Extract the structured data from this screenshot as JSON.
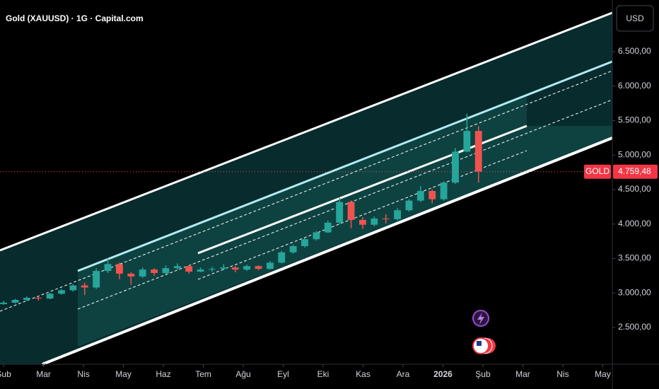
{
  "chart_data": {
    "type": "candlestick",
    "title": "Gold (XAUUSD) · 1G · Capital.com",
    "currency_button": "USD",
    "symbol_tag": "GOLD",
    "last_price": {
      "value": 4759.48,
      "label": "4.759,48"
    },
    "up_color": "#26a69a",
    "down_color": "#ef5350",
    "x": [
      0,
      0.29,
      0.58,
      0.87,
      1.16,
      1.45,
      1.74,
      2.03,
      2.32,
      2.61,
      2.9,
      3.19,
      3.48,
      3.77,
      4.06,
      4.35,
      4.64,
      4.93,
      5.22,
      5.51,
      5.8,
      6.09,
      6.38,
      6.67,
      6.96,
      7.25,
      7.54,
      7.83,
      8.12,
      8.41,
      8.7,
      8.99,
      9.28,
      9.57,
      9.86,
      10.15,
      10.44,
      10.73,
      11.02,
      11.31,
      11.6,
      11.89
    ],
    "open": [
      2840,
      2860,
      2900,
      2930,
      2920,
      2990,
      3040,
      3110,
      3080,
      3320,
      3420,
      3280,
      3240,
      3340,
      3290,
      3360,
      3390,
      3310,
      3340,
      3350,
      3370,
      3340,
      3390,
      3350,
      3440,
      3590,
      3680,
      3780,
      3880,
      4020,
      4320,
      4060,
      3990,
      4080,
      4070,
      4200,
      4340,
      4480,
      4360,
      4600,
      5050,
      5350
    ],
    "high": [
      2885,
      2915,
      2950,
      2955,
      3005,
      3060,
      3130,
      3150,
      3360,
      3500,
      3440,
      3300,
      3370,
      3360,
      3400,
      3430,
      3400,
      3370,
      3380,
      3420,
      3390,
      3410,
      3400,
      3460,
      3610,
      3700,
      3800,
      3900,
      4050,
      4380,
      4340,
      4100,
      4110,
      4140,
      4230,
      4360,
      4550,
      4500,
      4620,
      5100,
      5600,
      5420
    ],
    "low": [
      2830,
      2850,
      2885,
      2890,
      2910,
      2975,
      3020,
      2970,
      3060,
      3290,
      3200,
      3120,
      3220,
      3250,
      3270,
      3340,
      3280,
      3300,
      3310,
      3330,
      3300,
      3320,
      3330,
      3340,
      3430,
      3570,
      3660,
      3760,
      3870,
      4000,
      3940,
      3930,
      3970,
      4010,
      4050,
      4180,
      4320,
      4300,
      4340,
      4580,
      5040,
      4600
    ],
    "close": [
      2860,
      2900,
      2930,
      2920,
      2990,
      3040,
      3110,
      3080,
      3320,
      3420,
      3280,
      3240,
      3340,
      3290,
      3360,
      3390,
      3310,
      3340,
      3350,
      3370,
      3340,
      3390,
      3350,
      3440,
      3590,
      3680,
      3780,
      3880,
      4020,
      4320,
      4060,
      3990,
      4080,
      4070,
      4200,
      4340,
      4480,
      4360,
      4600,
      5050,
      5350,
      4759.48
    ],
    "xlim": [
      -0.09,
      15.24
    ],
    "xticks": [
      {
        "value": 0,
        "label": "Şub"
      },
      {
        "value": 1,
        "label": "Mar"
      },
      {
        "value": 2,
        "label": "Nis"
      },
      {
        "value": 3,
        "label": "May"
      },
      {
        "value": 4,
        "label": "Haz"
      },
      {
        "value": 5,
        "label": "Tem"
      },
      {
        "value": 6,
        "label": "Ağu"
      },
      {
        "value": 7,
        "label": "Eyl"
      },
      {
        "value": 8,
        "label": "Eki"
      },
      {
        "value": 9,
        "label": "Kas"
      },
      {
        "value": 10,
        "label": "Ara"
      },
      {
        "value": 11,
        "label": "2026"
      },
      {
        "value": 12,
        "label": "Şub"
      },
      {
        "value": 13,
        "label": "Mar"
      },
      {
        "value": 14,
        "label": "Nis"
      },
      {
        "value": 15,
        "label": "May"
      }
    ],
    "ylim": [
      1967,
      7249
    ],
    "yticks": [
      {
        "value": 2500,
        "label": "2.500,00"
      },
      {
        "value": 3000,
        "label": "3.000,00"
      },
      {
        "value": 3500,
        "label": "3.500,00"
      },
      {
        "value": 4000,
        "label": "4.000,00"
      },
      {
        "value": 4500,
        "label": "4.500,00"
      },
      {
        "value": 5000,
        "label": "5.000,00"
      },
      {
        "value": 5500,
        "label": "5.500,00"
      },
      {
        "value": 6000,
        "label": "6.000,00"
      },
      {
        "value": 6500,
        "label": "6.500,00"
      }
    ]
  }
}
